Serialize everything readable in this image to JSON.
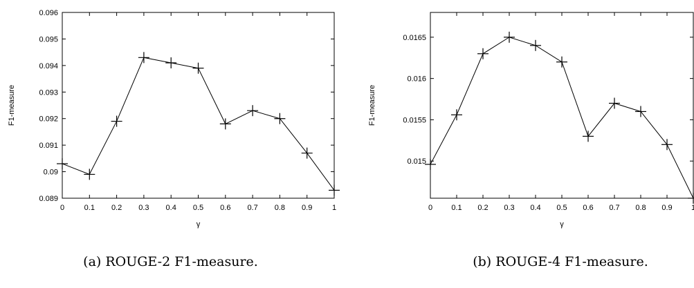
{
  "chart_data": [
    {
      "type": "line",
      "caption": "(a) ROUGE-2 F1-measure.",
      "xlabel": "γ",
      "ylabel": "F1-measure",
      "xlim": [
        0,
        1
      ],
      "ylim": [
        0.089,
        0.096
      ],
      "x_ticks": [
        "0",
        "0.1",
        "0.2",
        "0.3",
        "0.4",
        "0.5",
        "0.6",
        "0.7",
        "0.8",
        "0.9",
        "1"
      ],
      "y_ticks": [
        "0.089",
        "0.09",
        "0.091",
        "0.092",
        "0.093",
        "0.094",
        "0.095",
        "0.096"
      ],
      "series": [
        {
          "marker": "plus",
          "x": [
            0,
            0.1,
            0.2,
            0.3,
            0.4,
            0.5,
            0.6,
            0.7,
            0.8,
            0.9,
            1
          ],
          "values": [
            0.0903,
            0.0899,
            0.0919,
            0.0943,
            0.0941,
            0.0939,
            0.0918,
            0.0923,
            0.092,
            0.0907,
            0.0893
          ]
        }
      ]
    },
    {
      "type": "line",
      "caption": "(b) ROUGE-4 F1-measure.",
      "xlabel": "γ",
      "ylabel": "F1-measure",
      "xlim": [
        0,
        1
      ],
      "ylim": [
        0.01455,
        0.0168
      ],
      "x_ticks": [
        "0",
        "0.1",
        "0.2",
        "0.3",
        "0.4",
        "0.5",
        "0.6",
        "0.7",
        "0.8",
        "0.9",
        "1"
      ],
      "y_ticks": [
        "0.015",
        "0.0155",
        "0.016",
        "0.0165"
      ],
      "series": [
        {
          "marker": "plus",
          "x": [
            0,
            0.1,
            0.2,
            0.3,
            0.4,
            0.5,
            0.6,
            0.7,
            0.8,
            0.9,
            1
          ],
          "values": [
            0.01496,
            0.01556,
            0.0163,
            0.0165,
            0.0164,
            0.0162,
            0.0153,
            0.0157,
            0.0156,
            0.0152,
            0.01455
          ]
        }
      ]
    }
  ]
}
